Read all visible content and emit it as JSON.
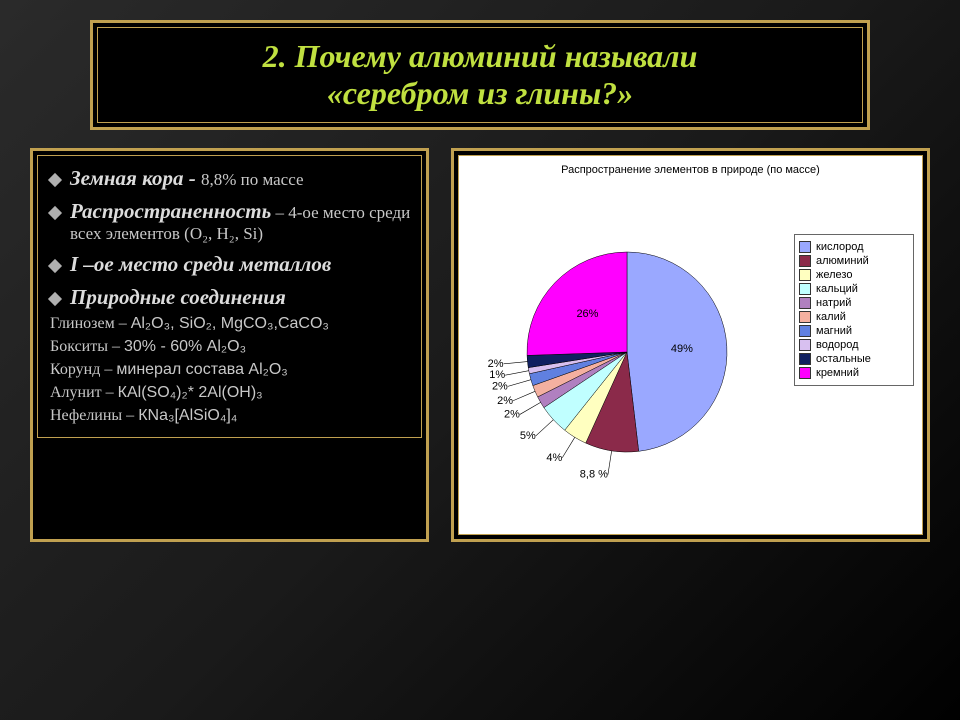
{
  "title": {
    "line1": "2. Почему алюминий называли",
    "line2": "«серебром из глины?»"
  },
  "bullets": [
    {
      "main": "Земная кора",
      "sep": "  -  ",
      "sub": "8,8% по массе"
    },
    {
      "main": "Распространенность",
      "sep": " – ",
      "sub": "4-ое место среди всех элементов (O₂, H₂, Si)"
    },
    {
      "main": "I –ое место среди металлов",
      "sep": "",
      "sub": ""
    },
    {
      "main": "Природные соединения",
      "sep": "",
      "sub": ""
    }
  ],
  "compounds": {
    "c1_a": "Глинозем – ",
    "c1_b": "Al₂O₃, SiO₂, MgCO₃,CaCO₃",
    "c2_a": "Бокситы – ",
    "c2_b": "30% - 60% Al₂O₃",
    "c3_a": "Корунд – ",
    "c3_b": "минерал состава Al₂O₃",
    "c4_a": "Алунит – ",
    "c4_b": "КAl(SO₄)₂* 2Al(OH)₃",
    "c5_a": "Нефелины – ",
    "c5_b": "КNa₃[AlSiO₄]₄"
  },
  "chart": {
    "type": "pie",
    "title": "Распространение элементов в природе (по массе)",
    "background_color": "#ffffff",
    "label_fontsize": 11,
    "title_fontsize": 11,
    "slices": [
      {
        "name": "кислород",
        "value": 49,
        "color": "#9aa8ff",
        "label": "49%"
      },
      {
        "name": "алюминий",
        "value": 8.8,
        "color": "#8b2a4a",
        "label": "8,8 %"
      },
      {
        "name": "железо",
        "value": 4,
        "color": "#ffffc0",
        "label": "4%"
      },
      {
        "name": "кальций",
        "value": 5,
        "color": "#c0ffff",
        "label": "5%"
      },
      {
        "name": "натрий",
        "value": 2,
        "color": "#b080c0",
        "label": "2%"
      },
      {
        "name": "калий",
        "value": 2,
        "color": "#f4b0a0",
        "label": "2%"
      },
      {
        "name": "магний",
        "value": 2,
        "color": "#6080e0",
        "label": "2%"
      },
      {
        "name": "водород",
        "value": 1,
        "color": "#d8c0f0",
        "label": "1%"
      },
      {
        "name": "остальные",
        "value": 2,
        "color": "#102060",
        "label": "2%"
      },
      {
        "name": "кремний",
        "value": 26,
        "color": "#ff00ff",
        "label": "26%"
      }
    ],
    "legend_border": "#666666"
  }
}
